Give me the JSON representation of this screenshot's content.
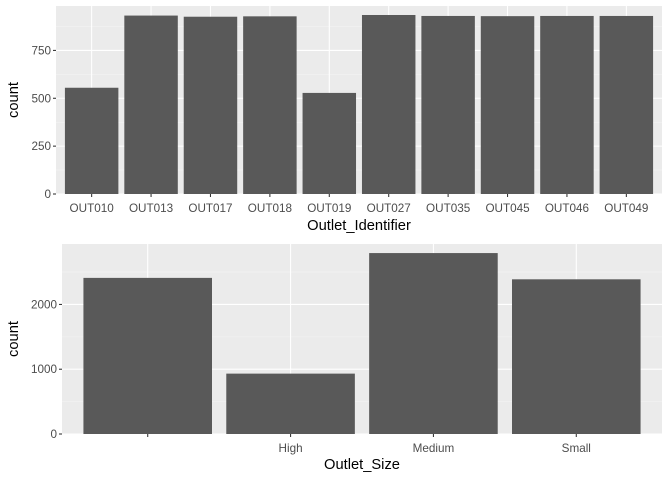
{
  "chart_data": [
    {
      "type": "bar",
      "categories": [
        "OUT010",
        "OUT013",
        "OUT017",
        "OUT018",
        "OUT019",
        "OUT027",
        "OUT035",
        "OUT045",
        "OUT046",
        "OUT049"
      ],
      "values": [
        555,
        932,
        926,
        928,
        528,
        935,
        930,
        929,
        930,
        930
      ],
      "xlabel": "Outlet_Identifier",
      "ylabel": "count",
      "ylim": [
        0,
        982
      ],
      "yticks": [
        0,
        250,
        500,
        750
      ],
      "ytick_labels": [
        "0",
        "250",
        "500",
        "750"
      ],
      "grid": true
    },
    {
      "type": "bar",
      "categories": [
        "",
        "High",
        "Medium",
        "Small"
      ],
      "values": [
        2410,
        932,
        2793,
        2388
      ],
      "xlabel": "Outlet_Size",
      "ylabel": "count",
      "ylim": [
        0,
        2933
      ],
      "yticks": [
        0,
        1000,
        2000
      ],
      "ytick_labels": [
        "0",
        "1000",
        "2000"
      ],
      "grid": true
    }
  ]
}
